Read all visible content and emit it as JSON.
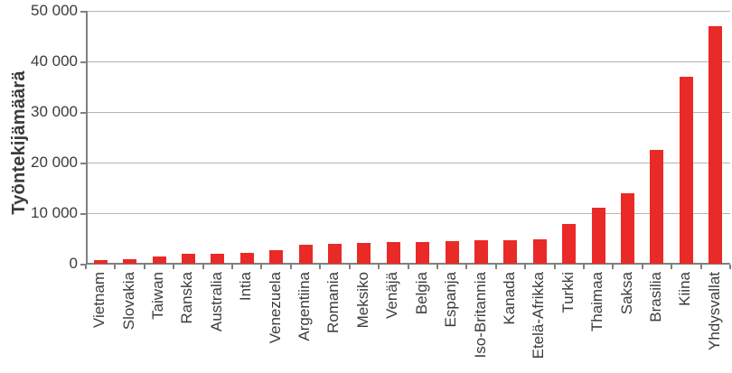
{
  "chart_data": {
    "type": "bar",
    "title": "",
    "xlabel": "",
    "ylabel": "Työntekijämäärä",
    "categories": [
      "Vietnam",
      "Slovakia",
      "Taiwan",
      "Ranska",
      "Australia",
      "Intia",
      "Venezuela",
      "Argentiina",
      "Romania",
      "Meksiko",
      "Venäjä",
      "Belgia",
      "Espanja",
      "Iso-Britannia",
      "Kanada",
      "Etelä-Afrikka",
      "Turkki",
      "Thaimaa",
      "Saksa",
      "Brasilia",
      "Kiina",
      "Yhdysvallat"
    ],
    "values": [
      700,
      900,
      1400,
      1900,
      2000,
      2200,
      2600,
      3700,
      4000,
      4100,
      4200,
      4300,
      4500,
      4600,
      4700,
      4900,
      7900,
      11000,
      14000,
      22500,
      37000,
      47000
    ],
    "ylim": [
      0,
      50000
    ],
    "ytick_values": [
      0,
      10000,
      20000,
      30000,
      40000,
      50000
    ],
    "ytick_labels": [
      "0",
      "10 000",
      "20 000",
      "30 000",
      "40 000",
      "50 000"
    ],
    "grid": "horizontal",
    "legend": "none",
    "colors": {
      "bar": "#e92a27",
      "grid": "#b3b3b3",
      "axis": "#808080",
      "text": "#3c3c3c",
      "background": "#ffffff"
    }
  }
}
